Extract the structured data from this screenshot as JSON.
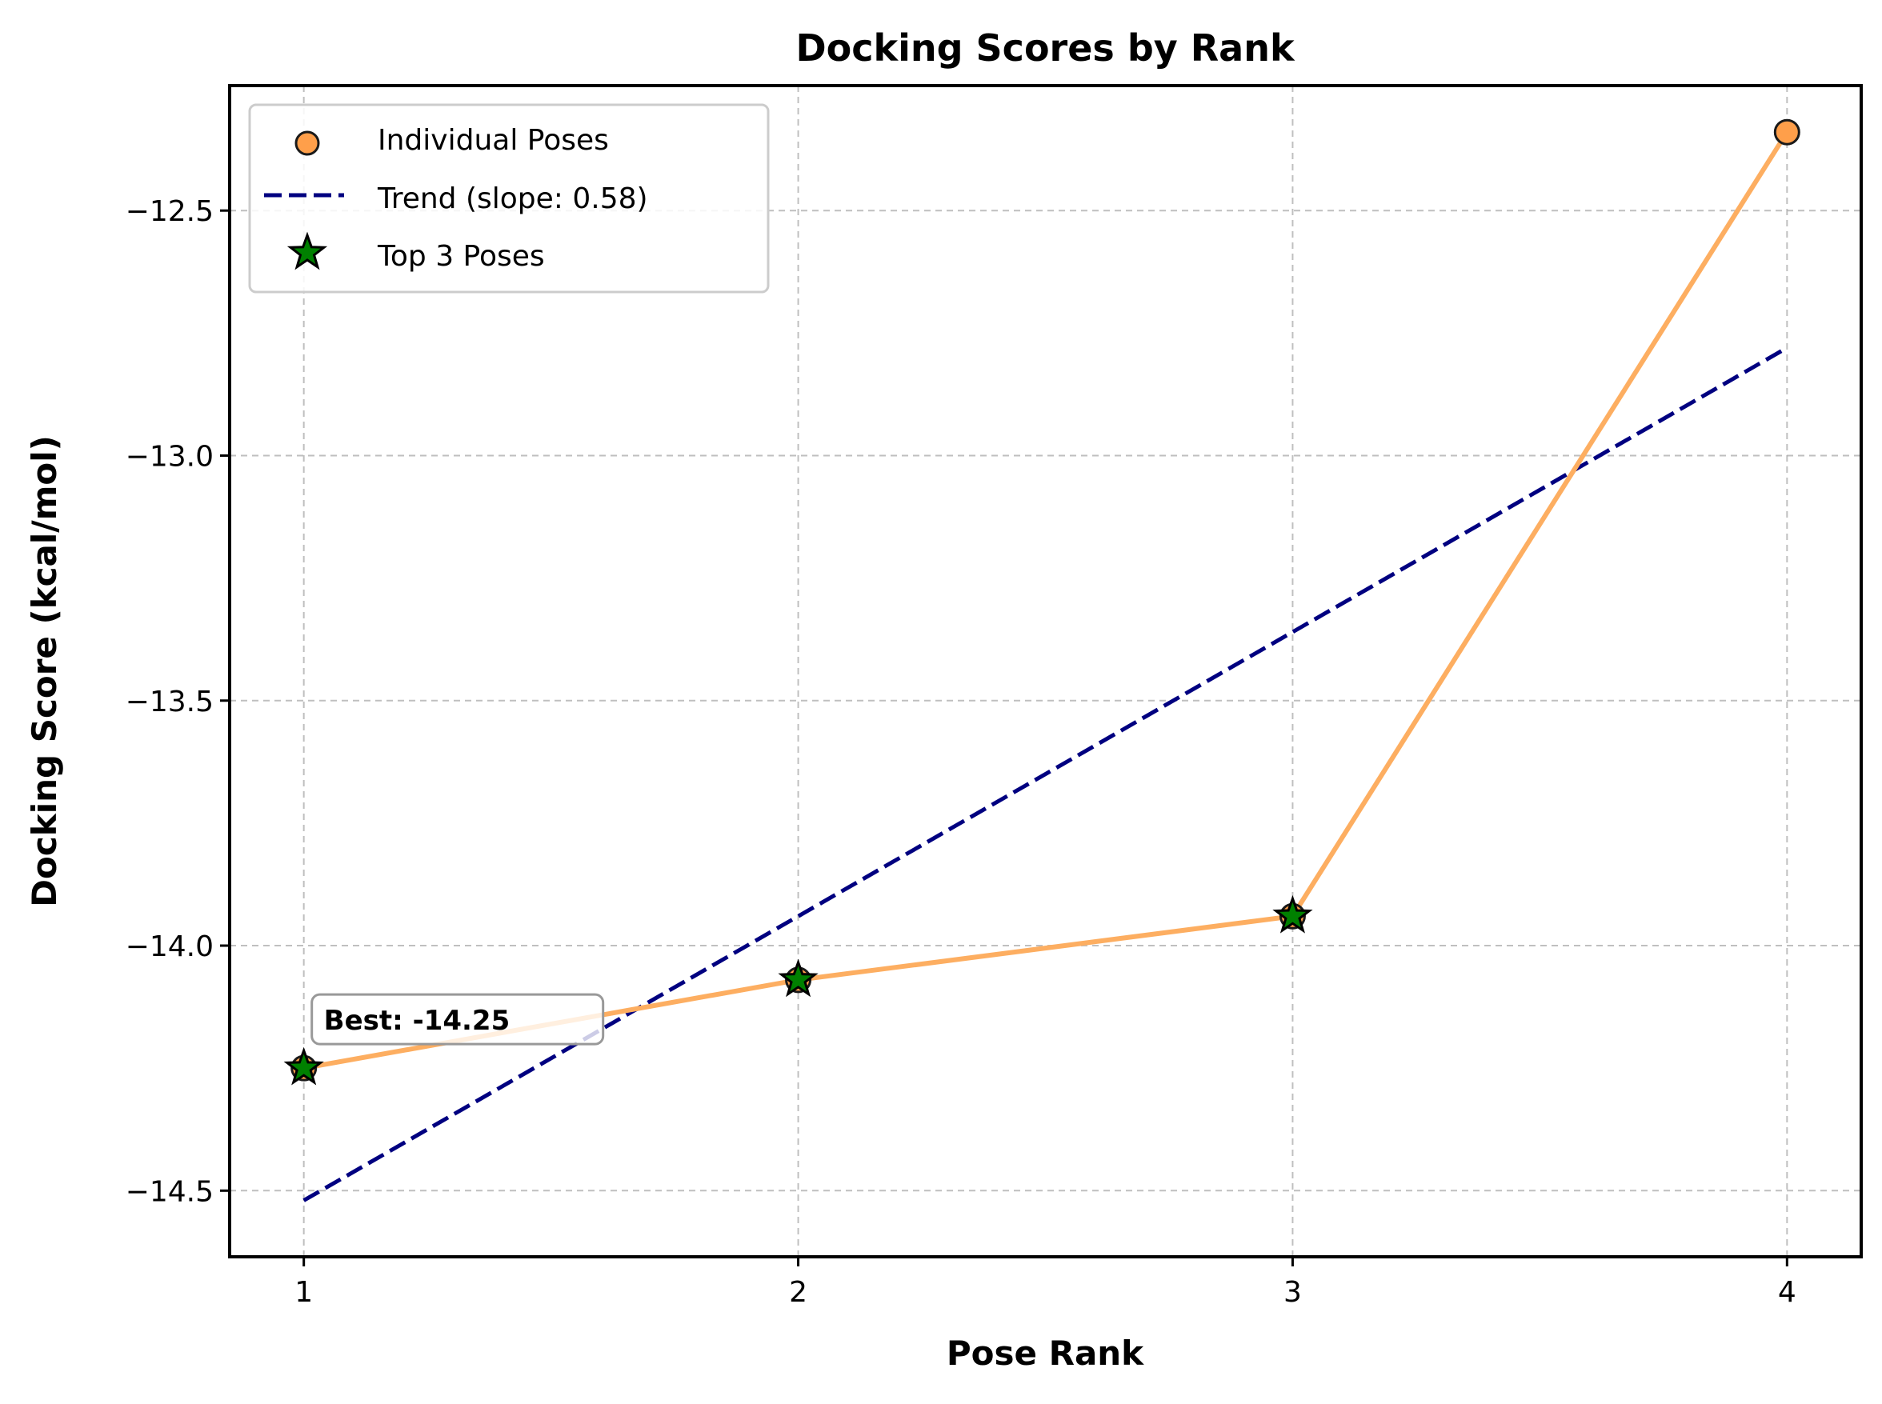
{
  "chart_data": {
    "type": "line",
    "title": "Docking Scores by Rank",
    "xlabel": "Pose Rank",
    "ylabel": "Docking Score (kcal/mol)",
    "x_ticks": [
      1,
      2,
      3,
      4
    ],
    "x_tick_labels": [
      "1",
      "2",
      "3",
      "4"
    ],
    "y_ticks": [
      -14.5,
      -14.0,
      -13.5,
      -13.0,
      -12.5
    ],
    "y_tick_labels": [
      "−14.5",
      "−14.0",
      "−13.5",
      "−13.0",
      "−12.5"
    ],
    "xlim": [
      0.85,
      4.15
    ],
    "ylim": [
      -14.635,
      -12.245
    ],
    "grid": true,
    "legend_placement": "top-left",
    "x": [
      1,
      2,
      3,
      4
    ],
    "series": [
      {
        "name": "Individual Poses",
        "kind": "line+scatter",
        "color": "#fdae61",
        "marker_color": "#ff9f4a",
        "x": [
          1,
          2,
          3,
          4
        ],
        "values": [
          -14.25,
          -14.07,
          -13.94,
          -12.34
        ]
      },
      {
        "name": "Trend (slope: 0.58)",
        "kind": "dashed-line",
        "color": "#000080",
        "x": [
          1,
          4
        ],
        "values": [
          -14.52,
          -12.78
        ]
      },
      {
        "name": "Top 3 Poses",
        "kind": "star-scatter",
        "color": "#008000",
        "x": [
          1,
          2,
          3
        ],
        "values": [
          -14.25,
          -14.07,
          -13.94
        ]
      }
    ],
    "annotations": [
      {
        "text": "Best: -14.25",
        "x": 1,
        "y": -14.25
      }
    ]
  }
}
